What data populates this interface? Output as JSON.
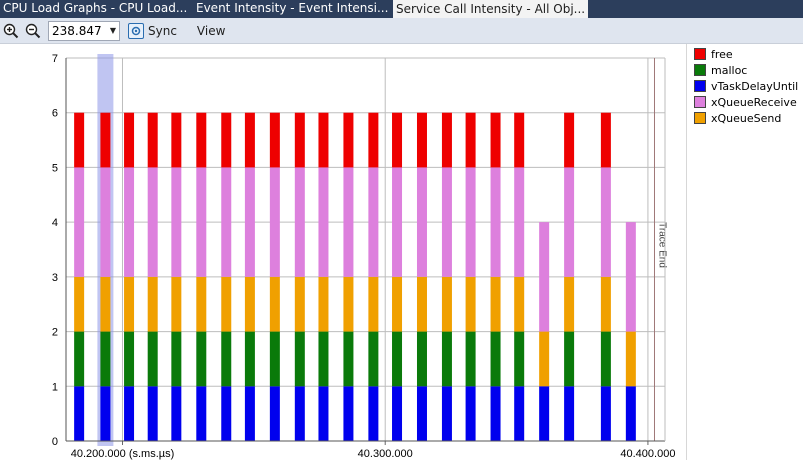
{
  "tabs": [
    {
      "label": "CPU Load Graphs - CPU Load...",
      "active": false
    },
    {
      "label": "Event Intensity - Event Intensi...",
      "active": false
    },
    {
      "label": "Service Call Intensity - All Obj...",
      "active": true
    }
  ],
  "toolbar": {
    "zoom_value": "238.847",
    "sync_label": "Sync",
    "view_label": "View"
  },
  "chart_data": {
    "type": "bar",
    "stacked": true,
    "ylim": [
      0,
      7
    ],
    "yticks": [
      0,
      1,
      2,
      3,
      4,
      5,
      6,
      7
    ],
    "xlim": [
      40.1785,
      40.4065
    ],
    "xticks": [
      {
        "value": 40.2,
        "label": "40.200.000 (s.ms.µs)"
      },
      {
        "value": 40.3,
        "label": "40.300.000"
      },
      {
        "value": 40.4,
        "label": "40.400.000"
      }
    ],
    "grid": true,
    "legend_position": "right",
    "series": [
      {
        "name": "free",
        "color": "#ee0000"
      },
      {
        "name": "malloc",
        "color": "#0a7a0a"
      },
      {
        "name": "vTaskDelayUntil",
        "color": "#0000ee"
      },
      {
        "name": "xQueueReceive",
        "color": "#dd80dd"
      },
      {
        "name": "xQueueSend",
        "color": "#f0a000"
      }
    ],
    "stack_order": [
      "vTaskDelayUntil",
      "malloc",
      "xQueueSend",
      "xQueueReceive",
      "free"
    ],
    "bars": [
      {
        "x": 40.1835,
        "values": {
          "vTaskDelayUntil": 1,
          "malloc": 1,
          "xQueueSend": 1,
          "xQueueReceive": 2,
          "free": 1
        }
      },
      {
        "x": 40.1935,
        "values": {
          "vTaskDelayUntil": 1,
          "malloc": 1,
          "xQueueSend": 1,
          "xQueueReceive": 2,
          "free": 1
        }
      },
      {
        "x": 40.2025,
        "values": {
          "vTaskDelayUntil": 1,
          "malloc": 1,
          "xQueueSend": 1,
          "xQueueReceive": 2,
          "free": 1
        }
      },
      {
        "x": 40.2115,
        "values": {
          "vTaskDelayUntil": 1,
          "malloc": 1,
          "xQueueSend": 1,
          "xQueueReceive": 2,
          "free": 1
        }
      },
      {
        "x": 40.2205,
        "values": {
          "vTaskDelayUntil": 1,
          "malloc": 1,
          "xQueueSend": 1,
          "xQueueReceive": 2,
          "free": 1
        }
      },
      {
        "x": 40.23,
        "values": {
          "vTaskDelayUntil": 1,
          "malloc": 1,
          "xQueueSend": 1,
          "xQueueReceive": 2,
          "free": 1
        }
      },
      {
        "x": 40.2395,
        "values": {
          "vTaskDelayUntil": 1,
          "malloc": 1,
          "xQueueSend": 1,
          "xQueueReceive": 2,
          "free": 1
        }
      },
      {
        "x": 40.2485,
        "values": {
          "vTaskDelayUntil": 1,
          "malloc": 1,
          "xQueueSend": 1,
          "xQueueReceive": 2,
          "free": 1
        }
      },
      {
        "x": 40.258,
        "values": {
          "vTaskDelayUntil": 1,
          "malloc": 1,
          "xQueueSend": 1,
          "xQueueReceive": 2,
          "free": 1
        }
      },
      {
        "x": 40.2675,
        "values": {
          "vTaskDelayUntil": 1,
          "malloc": 1,
          "xQueueSend": 1,
          "xQueueReceive": 2,
          "free": 1
        }
      },
      {
        "x": 40.2765,
        "values": {
          "vTaskDelayUntil": 1,
          "malloc": 1,
          "xQueueSend": 1,
          "xQueueReceive": 2,
          "free": 1
        }
      },
      {
        "x": 40.286,
        "values": {
          "vTaskDelayUntil": 1,
          "malloc": 1,
          "xQueueSend": 1,
          "xQueueReceive": 2,
          "free": 1
        }
      },
      {
        "x": 40.2955,
        "values": {
          "vTaskDelayUntil": 1,
          "malloc": 1,
          "xQueueSend": 1,
          "xQueueReceive": 2,
          "free": 1
        }
      },
      {
        "x": 40.3045,
        "values": {
          "vTaskDelayUntil": 1,
          "malloc": 1,
          "xQueueSend": 1,
          "xQueueReceive": 2,
          "free": 1
        }
      },
      {
        "x": 40.314,
        "values": {
          "vTaskDelayUntil": 1,
          "malloc": 1,
          "xQueueSend": 1,
          "xQueueReceive": 2,
          "free": 1
        }
      },
      {
        "x": 40.3235,
        "values": {
          "vTaskDelayUntil": 1,
          "malloc": 1,
          "xQueueSend": 1,
          "xQueueReceive": 2,
          "free": 1
        }
      },
      {
        "x": 40.3325,
        "values": {
          "vTaskDelayUntil": 1,
          "malloc": 1,
          "xQueueSend": 1,
          "xQueueReceive": 2,
          "free": 1
        }
      },
      {
        "x": 40.342,
        "values": {
          "vTaskDelayUntil": 1,
          "malloc": 1,
          "xQueueSend": 1,
          "xQueueReceive": 2,
          "free": 1
        }
      },
      {
        "x": 40.351,
        "values": {
          "vTaskDelayUntil": 1,
          "malloc": 1,
          "xQueueSend": 1,
          "xQueueReceive": 2,
          "free": 1
        }
      },
      {
        "x": 40.3605,
        "values": {
          "vTaskDelayUntil": 1,
          "malloc": 0,
          "xQueueSend": 1,
          "xQueueReceive": 2,
          "free": 0
        }
      },
      {
        "x": 40.37,
        "values": {
          "vTaskDelayUntil": 1,
          "malloc": 1,
          "xQueueSend": 1,
          "xQueueReceive": 2,
          "free": 1
        }
      },
      {
        "x": 40.384,
        "values": {
          "vTaskDelayUntil": 1,
          "malloc": 1,
          "xQueueSend": 1,
          "xQueueReceive": 2,
          "free": 1
        }
      },
      {
        "x": 40.3935,
        "values": {
          "vTaskDelayUntil": 1,
          "malloc": 0,
          "xQueueSend": 1,
          "xQueueReceive": 2,
          "free": 0
        }
      }
    ],
    "selection_x": 40.1935,
    "trace_end_x": 40.4025,
    "trace_end_label": "Trace End"
  }
}
